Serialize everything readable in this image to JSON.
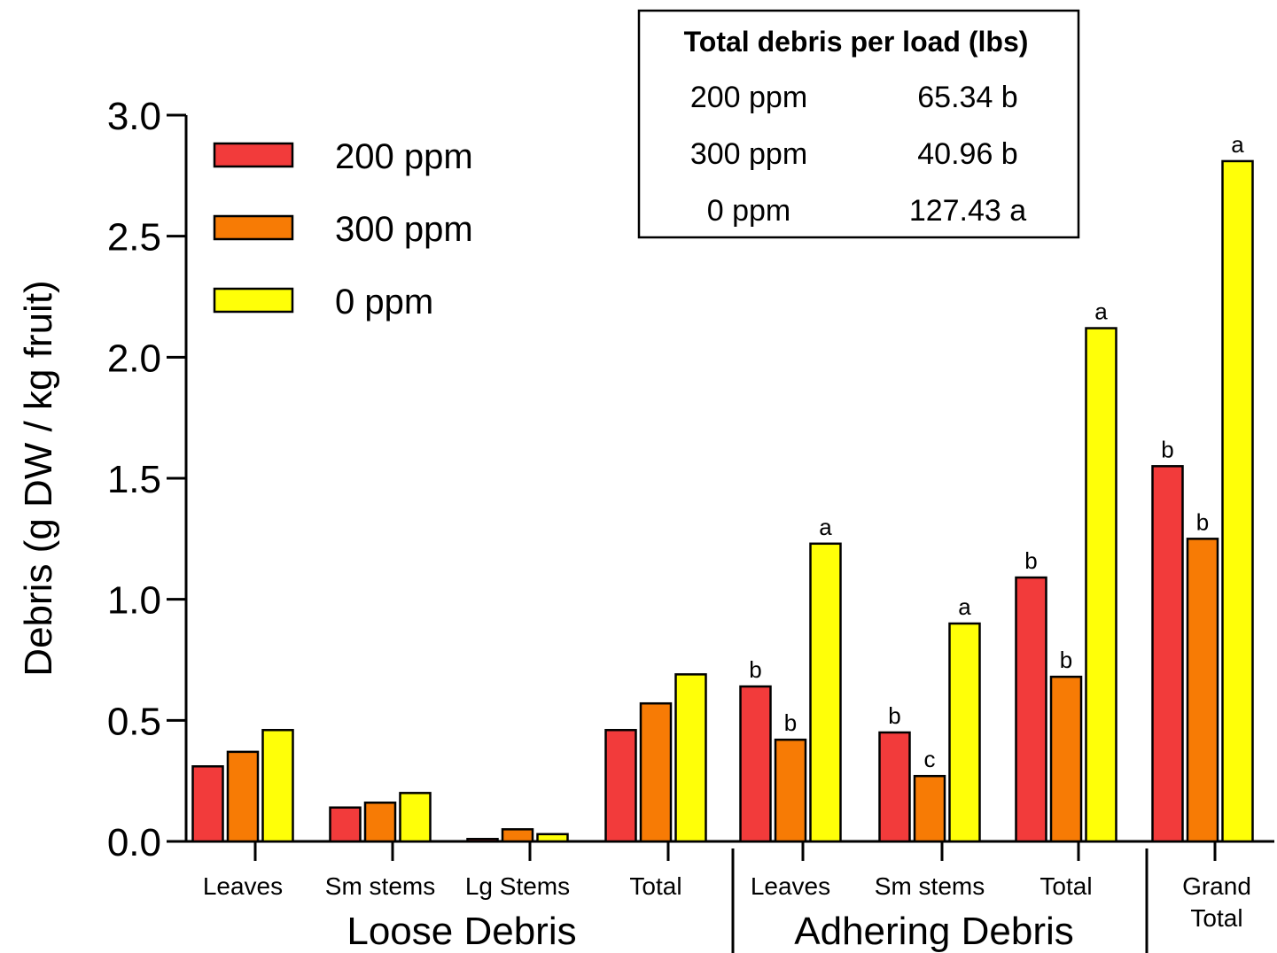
{
  "chart_data": {
    "type": "bar",
    "ylabel": "Debris (g DW / kg fruit)",
    "ylim": [
      0,
      3.0
    ],
    "yticks": [
      "0.0",
      "0.5",
      "1.0",
      "1.5",
      "2.0",
      "2.5",
      "3.0"
    ],
    "categories": [
      "Leaves",
      "Sm stems",
      "Lg Stems",
      "Total",
      "Leaves",
      "Sm stems",
      "Total",
      "Grand Total"
    ],
    "category_lines": [
      [
        "Leaves"
      ],
      [
        "Sm stems"
      ],
      [
        "Lg Stems"
      ],
      [
        "Total"
      ],
      [
        "Leaves"
      ],
      [
        "Sm stems"
      ],
      [
        "Total"
      ],
      [
        "Grand",
        "Total"
      ]
    ],
    "groups": [
      {
        "label": "Loose Debris",
        "categories": [
          0,
          1,
          2,
          3
        ]
      },
      {
        "label": "Adhering Debris",
        "categories": [
          4,
          5,
          6
        ]
      }
    ],
    "series": [
      {
        "name": "200 ppm",
        "color": "#F23B3B",
        "values": [
          0.31,
          0.14,
          0.01,
          0.46,
          0.64,
          0.45,
          1.09,
          1.55
        ],
        "letters": [
          "",
          "",
          "",
          "",
          "b",
          "b",
          "b",
          "b"
        ]
      },
      {
        "name": "300 ppm",
        "color": "#F77B05",
        "values": [
          0.37,
          0.16,
          0.05,
          0.57,
          0.42,
          0.27,
          0.68,
          1.25
        ],
        "letters": [
          "",
          "",
          "",
          "",
          "b",
          "c",
          "b",
          "b"
        ]
      },
      {
        "name": "0 ppm",
        "color": "#FFFF08",
        "values": [
          0.46,
          0.2,
          0.03,
          0.69,
          1.23,
          0.9,
          2.12,
          2.81
        ],
        "letters": [
          "",
          "",
          "",
          "",
          "a",
          "a",
          "a",
          "a"
        ]
      }
    ],
    "legend_position": "top-left",
    "grid": false,
    "inset_table": {
      "title": "Total debris per load (lbs)",
      "rows": [
        [
          "200 ppm",
          "65.34 b"
        ],
        [
          "300 ppm",
          "40.96 b"
        ],
        [
          "0 ppm",
          "127.43 a"
        ]
      ]
    }
  }
}
